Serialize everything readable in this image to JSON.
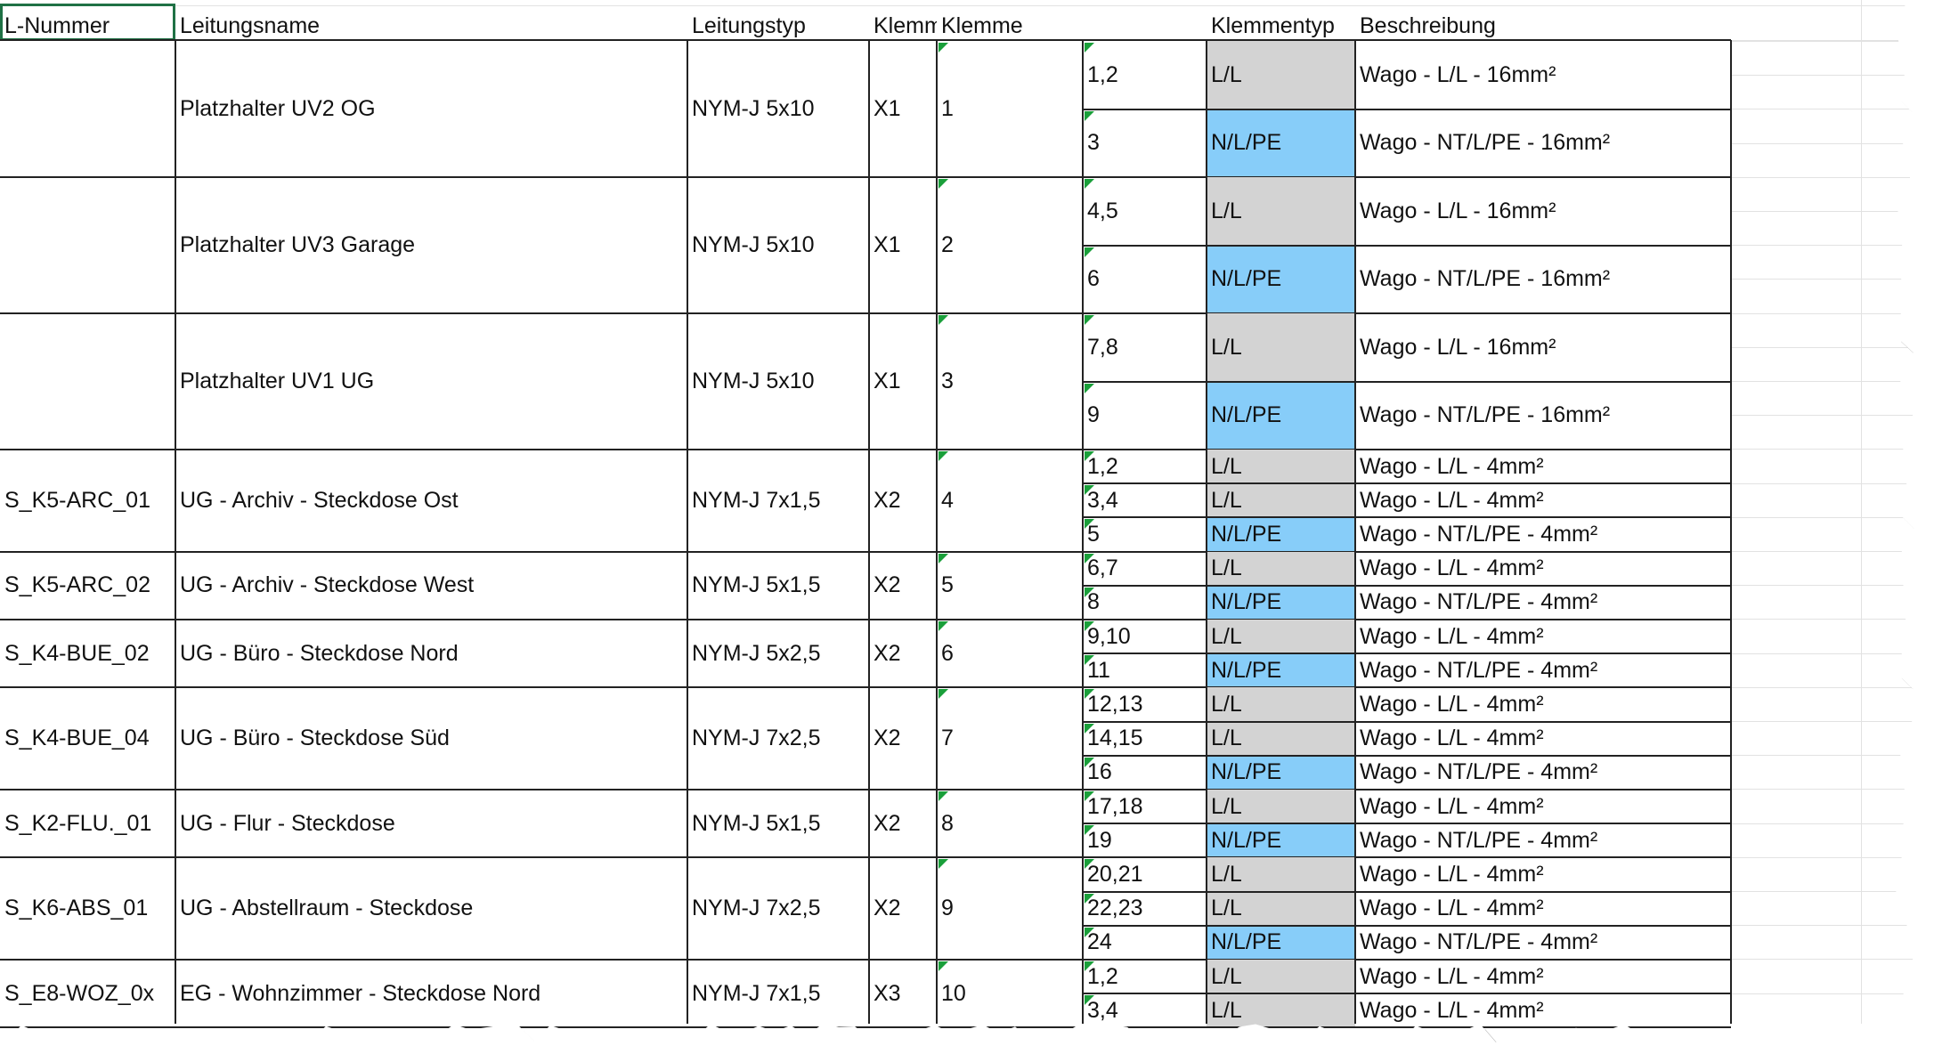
{
  "header": [
    "L-Nummer",
    "Leitungsname",
    "Leitungstyp",
    "Klemm",
    "Klemme",
    "",
    "Klemmentyp",
    "Beschreibung"
  ],
  "groups": [
    {
      "l_nummer": "",
      "name": "Platzhalter UV2 OG",
      "typ": "NYM-J 5x10",
      "leiste": "X1",
      "klemme": "1",
      "rows": [
        {
          "n": "1,2",
          "t": "L/L",
          "b": "Wago - L/L - 16mm²"
        },
        {
          "n": "3",
          "t": "N/L/PE",
          "b": "Wago - NT/L/PE - 16mm²"
        }
      ]
    },
    {
      "l_nummer": "",
      "name": "Platzhalter UV3 Garage",
      "typ": "NYM-J 5x10",
      "leiste": "X1",
      "klemme": "2",
      "rows": [
        {
          "n": "4,5",
          "t": "L/L",
          "b": "Wago - L/L - 16mm²"
        },
        {
          "n": "6",
          "t": "N/L/PE",
          "b": "Wago - NT/L/PE - 16mm²"
        }
      ]
    },
    {
      "l_nummer": "",
      "name": "Platzhalter UV1 UG",
      "typ": "NYM-J 5x10",
      "leiste": "X1",
      "klemme": "3",
      "rows": [
        {
          "n": "7,8",
          "t": "L/L",
          "b": "Wago - L/L - 16mm²"
        },
        {
          "n": "9",
          "t": "N/L/PE",
          "b": "Wago - NT/L/PE - 16mm²"
        }
      ]
    },
    {
      "l_nummer": "S_K5-ARC_01",
      "name": "UG - Archiv - Steckdose Ost",
      "typ": "NYM-J 7x1,5",
      "leiste": "X2",
      "klemme": "4",
      "rows": [
        {
          "n": "1,2",
          "t": "L/L",
          "b": "Wago - L/L - 4mm²"
        },
        {
          "n": "3,4",
          "t": "L/L",
          "b": "Wago - L/L - 4mm²"
        },
        {
          "n": "5",
          "t": "N/L/PE",
          "b": "Wago - NT/L/PE - 4mm²"
        }
      ]
    },
    {
      "l_nummer": "S_K5-ARC_02",
      "name": "UG - Archiv - Steckdose West",
      "typ": "NYM-J 5x1,5",
      "leiste": "X2",
      "klemme": "5",
      "rows": [
        {
          "n": "6,7",
          "t": "L/L",
          "b": "Wago - L/L - 4mm²"
        },
        {
          "n": "8",
          "t": "N/L/PE",
          "b": "Wago - NT/L/PE - 4mm²"
        }
      ]
    },
    {
      "l_nummer": "S_K4-BUE_02",
      "name": "UG - Büro - Steckdose Nord",
      "typ": "NYM-J 5x2,5",
      "leiste": "X2",
      "klemme": "6",
      "rows": [
        {
          "n": "9,10",
          "t": "L/L",
          "b": "Wago - L/L - 4mm²"
        },
        {
          "n": "11",
          "t": "N/L/PE",
          "b": "Wago - NT/L/PE - 4mm²"
        }
      ]
    },
    {
      "l_nummer": "S_K4-BUE_04",
      "name": "UG - Büro - Steckdose Süd",
      "typ": "NYM-J 7x2,5",
      "leiste": "X2",
      "klemme": "7",
      "rows": [
        {
          "n": "12,13",
          "t": "L/L",
          "b": "Wago - L/L - 4mm²"
        },
        {
          "n": "14,15",
          "t": "L/L",
          "b": "Wago - L/L - 4mm²"
        },
        {
          "n": "16",
          "t": "N/L/PE",
          "b": "Wago - NT/L/PE - 4mm²"
        }
      ]
    },
    {
      "l_nummer": "S_K2-FLU._01",
      "name": "UG - Flur - Steckdose",
      "typ": "NYM-J 5x1,5",
      "leiste": "X2",
      "klemme": "8",
      "rows": [
        {
          "n": "17,18",
          "t": "L/L",
          "b": "Wago - L/L - 4mm²"
        },
        {
          "n": "19",
          "t": "N/L/PE",
          "b": "Wago - NT/L/PE - 4mm²"
        }
      ]
    },
    {
      "l_nummer": "S_K6-ABS_01",
      "name": "UG - Abstellraum - Steckdose",
      "typ": "NYM-J 7x2,5",
      "leiste": "X2",
      "klemme": "9",
      "rows": [
        {
          "n": "20,21",
          "t": "L/L",
          "b": "Wago - L/L - 4mm²"
        },
        {
          "n": "22,23",
          "t": "L/L",
          "b": "Wago - L/L - 4mm²"
        },
        {
          "n": "24",
          "t": "N/L/PE",
          "b": "Wago - NT/L/PE - 4mm²"
        }
      ]
    },
    {
      "l_nummer": "S_E8-WOZ_0x",
      "name": "EG - Wohnzimmer - Steckdose Nord",
      "typ": "NYM-J 7x1,5",
      "leiste": "X3",
      "klemme": "10",
      "rows": [
        {
          "n": "1,2",
          "t": "L/L",
          "b": "Wago - L/L - 4mm²"
        },
        {
          "n": "3,4",
          "t": "L/L",
          "b": "Wago - L/L - 4mm²"
        }
      ]
    }
  ],
  "colors": {
    "gray_cell": "#d3d3d3",
    "blue_cell": "#87cdf9",
    "comment_marker": "#1a9f3a",
    "selection": "#1f7145"
  }
}
